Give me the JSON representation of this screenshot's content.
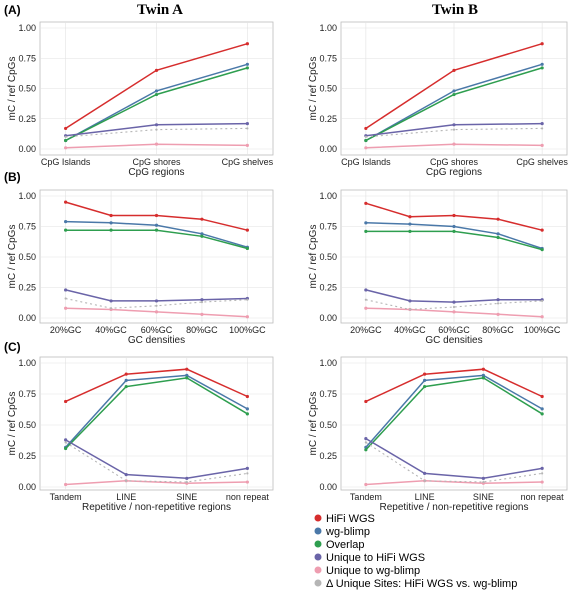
{
  "columns": [
    "Twin A",
    "Twin B"
  ],
  "panel_labels": [
    "(A)",
    "(B)",
    "(C)"
  ],
  "series_styles": [
    {
      "name": "HiFi WGS",
      "color": "#d62d2d",
      "dashed": false
    },
    {
      "name": "wg-blimp",
      "color": "#4a78a8",
      "dashed": false
    },
    {
      "name": "Overlap",
      "color": "#2e9e4f",
      "dashed": false
    },
    {
      "name": "Unique to HiFi WGS",
      "color": "#6a64a8",
      "dashed": false
    },
    {
      "name": "Unique to wg-blimp",
      "color": "#ee9db0",
      "dashed": false
    },
    {
      "name": "Δ Unique Sites: HiFi WGS vs. wg-blimp",
      "color": "#b5b5b5",
      "dashed": true
    }
  ],
  "chart_data": [
    {
      "type": "line",
      "panel": "(A)",
      "twin": "Twin A",
      "categories": [
        "CpG Islands",
        "CpG shores",
        "CpG shelves"
      ],
      "xlabel": "CpG regions",
      "ylabel": "mC / ref CpGs",
      "ylim": [
        0,
        1
      ],
      "yticks": [
        "0.00",
        "0.25",
        "0.50",
        "0.75",
        "1.00"
      ],
      "grid": true,
      "series": [
        {
          "name": "HiFi WGS",
          "values": [
            0.17,
            0.65,
            0.87
          ]
        },
        {
          "name": "wg-blimp",
          "values": [
            0.07,
            0.48,
            0.7
          ]
        },
        {
          "name": "Overlap",
          "values": [
            0.07,
            0.45,
            0.67
          ]
        },
        {
          "name": "Unique to HiFi WGS",
          "values": [
            0.11,
            0.2,
            0.21
          ]
        },
        {
          "name": "Unique to wg-blimp",
          "values": [
            0.01,
            0.04,
            0.03
          ]
        },
        {
          "name": "Δ Unique Sites: HiFi WGS vs. wg-blimp",
          "values": [
            0.1,
            0.16,
            0.17
          ]
        }
      ]
    },
    {
      "type": "line",
      "panel": "(A)",
      "twin": "Twin B",
      "categories": [
        "CpG Islands",
        "CpG shores",
        "CpG shelves"
      ],
      "xlabel": "CpG regions",
      "ylabel": "mC / ref CpGs",
      "ylim": [
        0,
        1
      ],
      "yticks": [
        "0.00",
        "0.25",
        "0.50",
        "0.75",
        "1.00"
      ],
      "grid": true,
      "series": [
        {
          "name": "HiFi WGS",
          "values": [
            0.17,
            0.65,
            0.87
          ]
        },
        {
          "name": "wg-blimp",
          "values": [
            0.07,
            0.48,
            0.7
          ]
        },
        {
          "name": "Overlap",
          "values": [
            0.07,
            0.45,
            0.67
          ]
        },
        {
          "name": "Unique to HiFi WGS",
          "values": [
            0.11,
            0.2,
            0.21
          ]
        },
        {
          "name": "Unique to wg-blimp",
          "values": [
            0.01,
            0.04,
            0.03
          ]
        },
        {
          "name": "Δ Unique Sites: HiFi WGS vs. wg-blimp",
          "values": [
            0.1,
            0.16,
            0.17
          ]
        }
      ]
    },
    {
      "type": "line",
      "panel": "(B)",
      "twin": "Twin A",
      "categories": [
        "20%GC",
        "40%GC",
        "60%GC",
        "80%GC",
        "100%GC"
      ],
      "xlabel": "GC densities",
      "ylabel": "mC / ref CpGs",
      "ylim": [
        0,
        1
      ],
      "yticks": [
        "0.00",
        "0.25",
        "0.50",
        "0.75",
        "1.00"
      ],
      "grid": true,
      "series": [
        {
          "name": "HiFi WGS",
          "values": [
            0.95,
            0.84,
            0.84,
            0.81,
            0.72
          ]
        },
        {
          "name": "wg-blimp",
          "values": [
            0.79,
            0.78,
            0.76,
            0.69,
            0.58
          ]
        },
        {
          "name": "Overlap",
          "values": [
            0.72,
            0.72,
            0.72,
            0.67,
            0.57
          ]
        },
        {
          "name": "Unique to HiFi WGS",
          "values": [
            0.23,
            0.14,
            0.14,
            0.15,
            0.16
          ]
        },
        {
          "name": "Unique to wg-blimp",
          "values": [
            0.08,
            0.07,
            0.05,
            0.03,
            0.01
          ]
        },
        {
          "name": "Δ Unique Sites: HiFi WGS vs. wg-blimp",
          "values": [
            0.16,
            0.08,
            0.1,
            0.13,
            0.15
          ]
        }
      ]
    },
    {
      "type": "line",
      "panel": "(B)",
      "twin": "Twin B",
      "categories": [
        "20%GC",
        "40%GC",
        "60%GC",
        "80%GC",
        "100%GC"
      ],
      "xlabel": "GC densities",
      "ylabel": "mC / ref CpGs",
      "ylim": [
        0,
        1
      ],
      "yticks": [
        "0.00",
        "0.25",
        "0.50",
        "0.75",
        "1.00"
      ],
      "grid": true,
      "series": [
        {
          "name": "HiFi WGS",
          "values": [
            0.94,
            0.83,
            0.84,
            0.81,
            0.72
          ]
        },
        {
          "name": "wg-blimp",
          "values": [
            0.78,
            0.77,
            0.75,
            0.69,
            0.57
          ]
        },
        {
          "name": "Overlap",
          "values": [
            0.71,
            0.71,
            0.71,
            0.66,
            0.56
          ]
        },
        {
          "name": "Unique to HiFi WGS",
          "values": [
            0.23,
            0.14,
            0.13,
            0.15,
            0.15
          ]
        },
        {
          "name": "Unique to wg-blimp",
          "values": [
            0.08,
            0.07,
            0.05,
            0.03,
            0.01
          ]
        },
        {
          "name": "Δ Unique Sites: HiFi WGS vs. wg-blimp",
          "values": [
            0.15,
            0.07,
            0.09,
            0.12,
            0.14
          ]
        }
      ]
    },
    {
      "type": "line",
      "panel": "(C)",
      "twin": "Twin A",
      "categories": [
        "Tandem",
        "LINE",
        "SINE",
        "non repeat"
      ],
      "xlabel": "Repetitive / non-repetitive regions",
      "ylabel": "mC / ref CpGs",
      "ylim": [
        0,
        1
      ],
      "yticks": [
        "0.00",
        "0.25",
        "0.50",
        "0.75",
        "1.00"
      ],
      "grid": true,
      "series": [
        {
          "name": "HiFi WGS",
          "values": [
            0.69,
            0.91,
            0.95,
            0.73
          ]
        },
        {
          "name": "wg-blimp",
          "values": [
            0.32,
            0.86,
            0.9,
            0.63
          ]
        },
        {
          "name": "Overlap",
          "values": [
            0.31,
            0.81,
            0.88,
            0.59
          ]
        },
        {
          "name": "Unique to HiFi WGS",
          "values": [
            0.38,
            0.1,
            0.07,
            0.15
          ]
        },
        {
          "name": "Unique to wg-blimp",
          "values": [
            0.02,
            0.05,
            0.03,
            0.04
          ]
        },
        {
          "name": "Δ Unique Sites: HiFi WGS vs. wg-blimp",
          "values": [
            0.36,
            0.05,
            0.04,
            0.11
          ]
        }
      ]
    },
    {
      "type": "line",
      "panel": "(C)",
      "twin": "Twin B",
      "categories": [
        "Tandem",
        "LINE",
        "SINE",
        "non repeat"
      ],
      "xlabel": "Repetitive / non-repetitive regions",
      "ylabel": "mC / ref CpGs",
      "ylim": [
        0,
        1
      ],
      "yticks": [
        "0.00",
        "0.25",
        "0.50",
        "0.75",
        "1.00"
      ],
      "grid": true,
      "series": [
        {
          "name": "HiFi WGS",
          "values": [
            0.69,
            0.91,
            0.95,
            0.73
          ]
        },
        {
          "name": "wg-blimp",
          "values": [
            0.32,
            0.86,
            0.9,
            0.63
          ]
        },
        {
          "name": "Overlap",
          "values": [
            0.3,
            0.81,
            0.88,
            0.59
          ]
        },
        {
          "name": "Unique to HiFi WGS",
          "values": [
            0.39,
            0.11,
            0.07,
            0.15
          ]
        },
        {
          "name": "Unique to wg-blimp",
          "values": [
            0.02,
            0.05,
            0.03,
            0.04
          ]
        },
        {
          "name": "Δ Unique Sites: HiFi WGS vs. wg-blimp",
          "values": [
            0.36,
            0.05,
            0.04,
            0.11
          ]
        }
      ]
    }
  ]
}
